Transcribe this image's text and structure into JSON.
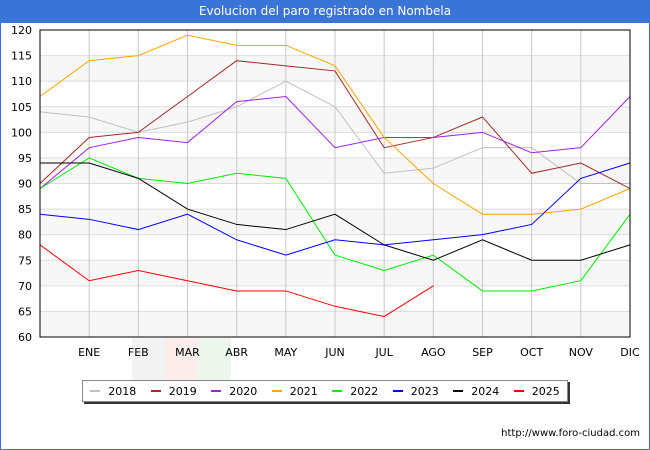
{
  "header": {
    "title": "Evolucion del paro registrado en Nombela"
  },
  "footer": {
    "url": "http://www.foro-ciudad.com"
  },
  "chart_data": {
    "type": "line",
    "title": "Evolucion del paro registrado en Nombela",
    "xlabel": "",
    "ylabel": "",
    "x": [
      "",
      "ENE",
      "FEB",
      "MAR",
      "ABR",
      "MAY",
      "JUN",
      "JUL",
      "AGO",
      "SEP",
      "OCT",
      "NOV",
      "DIC"
    ],
    "ylim": [
      60,
      120
    ],
    "yticks": [
      60,
      65,
      70,
      75,
      80,
      85,
      90,
      95,
      100,
      105,
      110,
      115,
      120
    ],
    "grid": true,
    "legend_position": "bottom",
    "series": [
      {
        "name": "2018",
        "color": "#c0c0c0",
        "values": [
          104,
          103,
          100,
          102,
          105,
          110,
          105,
          92,
          93,
          97,
          97,
          90,
          90
        ]
      },
      {
        "name": "2019",
        "color": "#a52a2a",
        "values": [
          90,
          99,
          100,
          107,
          114,
          113,
          112,
          97,
          99,
          103,
          92,
          94,
          89
        ]
      },
      {
        "name": "2020",
        "color": "#a020f0",
        "values": [
          89,
          97,
          99,
          98,
          106,
          107,
          97,
          99,
          99,
          100,
          96,
          97,
          107
        ]
      },
      {
        "name": "2021",
        "color": "#ffa500",
        "values": [
          107,
          114,
          115,
          119,
          117,
          117,
          113,
          99,
          90,
          84,
          84,
          85,
          89
        ]
      },
      {
        "name": "2022",
        "color": "#00ee00",
        "values": [
          89,
          95,
          91,
          90,
          92,
          91,
          76,
          73,
          76,
          69,
          69,
          71,
          84
        ]
      },
      {
        "name": "2023",
        "color": "#0000ff",
        "values": [
          84,
          83,
          81,
          84,
          79,
          76,
          79,
          78,
          79,
          80,
          82,
          91,
          94
        ]
      },
      {
        "name": "2024",
        "color": "#000000",
        "values": [
          94,
          94,
          91,
          85,
          82,
          81,
          84,
          78,
          75,
          79,
          75,
          75,
          78
        ]
      },
      {
        "name": "2025",
        "color": "#ff0000",
        "values": [
          78,
          71,
          73,
          71,
          69,
          69,
          66,
          64,
          70,
          null,
          null,
          null,
          null
        ]
      }
    ]
  }
}
